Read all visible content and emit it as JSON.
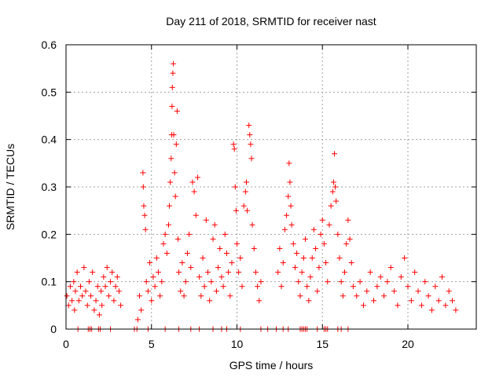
{
  "chart_data": {
    "type": "scatter",
    "title": "Day 211 of 2018, SRMTID for receiver nast",
    "xlabel": "GPS time / hours",
    "ylabel": "SRMTID / TECUs",
    "xlim": [
      0,
      24
    ],
    "ylim": [
      0,
      0.6
    ],
    "xticks": [
      "0",
      "5",
      "10",
      "15",
      "20"
    ],
    "yticks": [
      "0",
      "0.1",
      "0.2",
      "0.3",
      "0.4",
      "0.5",
      "0.6"
    ],
    "grid": true,
    "legend": "none",
    "marker": "plus",
    "color": "#ff0000",
    "series": [
      {
        "points": [
          [
            0.05,
            0.07
          ],
          [
            0.15,
            0.05
          ],
          [
            0.25,
            0.09
          ],
          [
            0.35,
            0.06
          ],
          [
            0.45,
            0.1
          ],
          [
            0.5,
            0.04
          ],
          [
            0.55,
            0.08
          ],
          [
            0.65,
            0.12
          ],
          [
            0.75,
            0.06
          ],
          [
            0.85,
            0.09
          ],
          [
            0.95,
            0.07
          ],
          [
            1.05,
            0.13
          ],
          [
            1.15,
            0.08
          ],
          [
            1.25,
            0.05
          ],
          [
            1.35,
            0.1
          ],
          [
            1.45,
            0.07
          ],
          [
            1.55,
            0.12
          ],
          [
            1.65,
            0.04
          ],
          [
            1.75,
            0.06
          ],
          [
            1.85,
            0.09
          ],
          [
            1.95,
            0.03
          ],
          [
            2.05,
            0.08
          ],
          [
            2.1,
            0.05
          ],
          [
            2.2,
            0.11
          ],
          [
            2.3,
            0.09
          ],
          [
            2.4,
            0.13
          ],
          [
            2.5,
            0.07
          ],
          [
            2.6,
            0.1
          ],
          [
            2.7,
            0.12
          ],
          [
            2.8,
            0.06
          ],
          [
            2.9,
            0.09
          ],
          [
            3.0,
            0.11
          ],
          [
            3.1,
            0.08
          ],
          [
            3.2,
            0.05
          ],
          [
            4.2,
            0.02
          ],
          [
            4.3,
            0.07
          ],
          [
            4.4,
            0.04
          ],
          [
            4.5,
            0.33
          ],
          [
            4.52,
            0.3
          ],
          [
            4.55,
            0.26
          ],
          [
            4.6,
            0.24
          ],
          [
            4.65,
            0.21
          ],
          [
            4.7,
            0.1
          ],
          [
            4.8,
            0.08
          ],
          [
            4.9,
            0.14
          ],
          [
            5.0,
            0.06
          ],
          [
            5.1,
            0.11
          ],
          [
            5.2,
            0.09
          ],
          [
            5.3,
            0.15
          ],
          [
            5.4,
            0.12
          ],
          [
            5.5,
            0.07
          ],
          [
            5.6,
            0.1
          ],
          [
            5.7,
            0.18
          ],
          [
            5.8,
            0.2
          ],
          [
            5.9,
            0.16
          ],
          [
            6.0,
            0.22
          ],
          [
            6.05,
            0.26
          ],
          [
            6.1,
            0.31
          ],
          [
            6.15,
            0.36
          ],
          [
            6.18,
            0.41
          ],
          [
            6.2,
            0.47
          ],
          [
            6.22,
            0.51
          ],
          [
            6.25,
            0.54
          ],
          [
            6.28,
            0.56
          ],
          [
            6.3,
            0.41
          ],
          [
            6.35,
            0.33
          ],
          [
            6.4,
            0.28
          ],
          [
            6.45,
            0.39
          ],
          [
            6.5,
            0.46
          ],
          [
            6.55,
            0.19
          ],
          [
            6.6,
            0.12
          ],
          [
            6.7,
            0.08
          ],
          [
            6.8,
            0.14
          ],
          [
            6.9,
            0.07
          ],
          [
            7.0,
            0.1
          ],
          [
            7.1,
            0.16
          ],
          [
            7.2,
            0.2
          ],
          [
            7.3,
            0.13
          ],
          [
            7.4,
            0.31
          ],
          [
            7.5,
            0.29
          ],
          [
            7.6,
            0.24
          ],
          [
            7.7,
            0.32
          ],
          [
            7.8,
            0.11
          ],
          [
            7.9,
            0.07
          ],
          [
            8.0,
            0.15
          ],
          [
            8.1,
            0.09
          ],
          [
            8.2,
            0.23
          ],
          [
            8.3,
            0.12
          ],
          [
            8.4,
            0.06
          ],
          [
            8.5,
            0.1
          ],
          [
            8.6,
            0.19
          ],
          [
            8.7,
            0.22
          ],
          [
            8.8,
            0.08
          ],
          [
            8.9,
            0.13
          ],
          [
            9.0,
            0.17
          ],
          [
            9.1,
            0.11
          ],
          [
            9.2,
            0.09
          ],
          [
            9.3,
            0.2
          ],
          [
            9.4,
            0.16
          ],
          [
            9.5,
            0.12
          ],
          [
            9.6,
            0.07
          ],
          [
            9.7,
            0.14
          ],
          [
            9.8,
            0.39
          ],
          [
            9.85,
            0.38
          ],
          [
            9.9,
            0.3
          ],
          [
            9.95,
            0.25
          ],
          [
            10.0,
            0.18
          ],
          [
            10.1,
            0.12
          ],
          [
            10.2,
            0.15
          ],
          [
            10.3,
            0.09
          ],
          [
            10.4,
            0.26
          ],
          [
            10.5,
            0.29
          ],
          [
            10.55,
            0.31
          ],
          [
            10.6,
            0.25
          ],
          [
            10.7,
            0.43
          ],
          [
            10.75,
            0.41
          ],
          [
            10.8,
            0.39
          ],
          [
            10.85,
            0.36
          ],
          [
            10.9,
            0.22
          ],
          [
            11.0,
            0.17
          ],
          [
            11.1,
            0.12
          ],
          [
            11.2,
            0.09
          ],
          [
            11.3,
            0.06
          ],
          [
            11.4,
            0.1
          ],
          [
            12.4,
            0.12
          ],
          [
            12.5,
            0.17
          ],
          [
            12.6,
            0.09
          ],
          [
            12.7,
            0.14
          ],
          [
            12.8,
            0.21
          ],
          [
            12.9,
            0.24
          ],
          [
            13.0,
            0.28
          ],
          [
            13.05,
            0.35
          ],
          [
            13.1,
            0.31
          ],
          [
            13.15,
            0.26
          ],
          [
            13.2,
            0.22
          ],
          [
            13.3,
            0.18
          ],
          [
            13.4,
            0.13
          ],
          [
            13.5,
            0.16
          ],
          [
            13.6,
            0.1
          ],
          [
            13.7,
            0.07
          ],
          [
            13.8,
            0.12
          ],
          [
            13.9,
            0.15
          ],
          [
            14.0,
            0.19
          ],
          [
            14.1,
            0.09
          ],
          [
            14.2,
            0.06
          ],
          [
            14.3,
            0.11
          ],
          [
            14.4,
            0.15
          ],
          [
            14.5,
            0.21
          ],
          [
            14.6,
            0.17
          ],
          [
            14.7,
            0.08
          ],
          [
            14.8,
            0.13
          ],
          [
            14.9,
            0.2
          ],
          [
            15.0,
            0.23
          ],
          [
            15.1,
            0.18
          ],
          [
            15.2,
            0.14
          ],
          [
            15.3,
            0.1
          ],
          [
            15.4,
            0.22
          ],
          [
            15.5,
            0.26
          ],
          [
            15.6,
            0.29
          ],
          [
            15.65,
            0.31
          ],
          [
            15.7,
            0.37
          ],
          [
            15.75,
            0.3
          ],
          [
            15.8,
            0.27
          ],
          [
            15.9,
            0.2
          ],
          [
            16.0,
            0.15
          ],
          [
            16.1,
            0.1
          ],
          [
            16.2,
            0.07
          ],
          [
            16.3,
            0.12
          ],
          [
            16.4,
            0.18
          ],
          [
            16.5,
            0.23
          ],
          [
            16.6,
            0.19
          ],
          [
            16.7,
            0.14
          ],
          [
            16.8,
            0.09
          ],
          [
            17.0,
            0.07
          ],
          [
            17.2,
            0.1
          ],
          [
            17.4,
            0.05
          ],
          [
            17.6,
            0.08
          ],
          [
            17.8,
            0.12
          ],
          [
            18.0,
            0.06
          ],
          [
            18.2,
            0.09
          ],
          [
            18.4,
            0.11
          ],
          [
            18.6,
            0.07
          ],
          [
            18.8,
            0.1
          ],
          [
            19.0,
            0.13
          ],
          [
            19.2,
            0.08
          ],
          [
            19.4,
            0.05
          ],
          [
            19.6,
            0.11
          ],
          [
            19.8,
            0.15
          ],
          [
            20.0,
            0.09
          ],
          [
            20.2,
            0.06
          ],
          [
            20.4,
            0.12
          ],
          [
            20.6,
            0.08
          ],
          [
            20.8,
            0.05
          ],
          [
            21.0,
            0.1
          ],
          [
            21.2,
            0.07
          ],
          [
            21.4,
            0.04
          ],
          [
            21.6,
            0.09
          ],
          [
            21.8,
            0.06
          ],
          [
            22.0,
            0.11
          ],
          [
            22.2,
            0.05
          ],
          [
            22.4,
            0.08
          ],
          [
            22.6,
            0.06
          ],
          [
            22.8,
            0.04
          ]
        ],
        "baseline_points": [
          0.7,
          1.3,
          1.4,
          1.5,
          1.9,
          2.0,
          2.6,
          4.0,
          4.15,
          4.8,
          5.8,
          6.6,
          7.3,
          7.8,
          8.6,
          9.1,
          9.4,
          10.2,
          11.4,
          11.8,
          12.3,
          12.7,
          13.0,
          13.7,
          13.8,
          13.9,
          14.0,
          14.1,
          14.7,
          15.1,
          15.2,
          15.3,
          15.9,
          16.1,
          16.5
        ]
      }
    ]
  }
}
